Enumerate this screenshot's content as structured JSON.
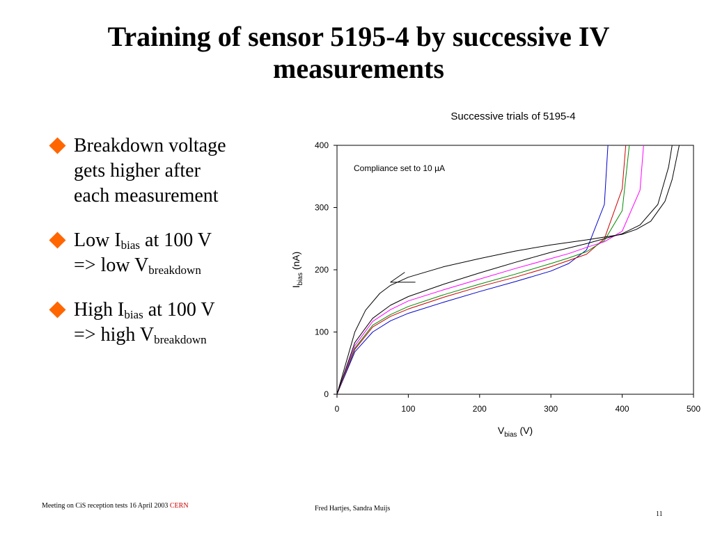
{
  "slide": {
    "title_line1": "Training of sensor 5195-4 by successive IV",
    "title_line2": "measurements"
  },
  "bullets": [
    {
      "parts": [
        "Breakdown voltage",
        "gets higher after",
        "each measurement"
      ]
    },
    {
      "line1": "Low I",
      "line1_sub": "bias",
      "line1_rest": " at  100 V",
      "line2": "=>  low V",
      "line2_sub": "breakdown"
    },
    {
      "line1": "High I",
      "line1_sub": "bias",
      "line1_rest": " at  100 V",
      "line2": "=>  high V",
      "line2_sub": "breakdown"
    }
  ],
  "bullet_color": "#ff6600",
  "footer": {
    "left": "Meeting on CiS reception tests 16 April 2003",
    "left_link": "CERN",
    "center": "Fred Hartjes, Sandra Muijs",
    "page": "11",
    "link_color": "#cc0000"
  },
  "chart_data": {
    "type": "line",
    "title": "Successive trials of 5195-4",
    "xlabel_main": "V",
    "xlabel_sub": "bias",
    "xlabel_unit": " (V)",
    "ylabel_main": "I",
    "ylabel_sub": "bias",
    "ylabel_unit": " (nA)",
    "xlim": [
      0,
      500
    ],
    "ylim": [
      0,
      400
    ],
    "xticks": [
      "0",
      "100",
      "200",
      "300",
      "400",
      "500"
    ],
    "yticks": [
      "0",
      "100",
      "200",
      "300",
      "400"
    ],
    "grid": false,
    "legend": "none",
    "annotation": "Compliance set to 10 µA",
    "series": [
      {
        "color": "#0000cc",
        "points": [
          [
            0,
            0
          ],
          [
            25,
            68
          ],
          [
            50,
            100
          ],
          [
            75,
            118
          ],
          [
            100,
            130
          ],
          [
            150,
            148
          ],
          [
            200,
            165
          ],
          [
            250,
            181
          ],
          [
            300,
            198
          ],
          [
            325,
            210
          ],
          [
            350,
            232
          ],
          [
            375,
            305
          ],
          [
            380,
            400
          ]
        ]
      },
      {
        "color": "#cc0000",
        "points": [
          [
            0,
            0
          ],
          [
            25,
            72
          ],
          [
            50,
            108
          ],
          [
            75,
            125
          ],
          [
            100,
            137
          ],
          [
            150,
            156
          ],
          [
            200,
            173
          ],
          [
            250,
            188
          ],
          [
            300,
            205
          ],
          [
            325,
            215
          ],
          [
            350,
            225
          ],
          [
            375,
            250
          ],
          [
            400,
            330
          ],
          [
            405,
            400
          ]
        ]
      },
      {
        "color": "#008800",
        "points": [
          [
            0,
            0
          ],
          [
            25,
            74
          ],
          [
            50,
            111
          ],
          [
            75,
            128
          ],
          [
            100,
            141
          ],
          [
            150,
            160
          ],
          [
            200,
            177
          ],
          [
            250,
            193
          ],
          [
            300,
            210
          ],
          [
            325,
            219
          ],
          [
            350,
            229
          ],
          [
            375,
            247
          ],
          [
            400,
            295
          ],
          [
            410,
            400
          ]
        ]
      },
      {
        "color": "#ff00ff",
        "points": [
          [
            0,
            0
          ],
          [
            25,
            78
          ],
          [
            50,
            117
          ],
          [
            75,
            136
          ],
          [
            100,
            150
          ],
          [
            150,
            168
          ],
          [
            200,
            185
          ],
          [
            250,
            202
          ],
          [
            300,
            218
          ],
          [
            325,
            226
          ],
          [
            350,
            236
          ],
          [
            375,
            245
          ],
          [
            400,
            262
          ],
          [
            425,
            328
          ],
          [
            430,
            400
          ]
        ]
      },
      {
        "color": "#000000",
        "points": [
          [
            0,
            0
          ],
          [
            25,
            83
          ],
          [
            50,
            122
          ],
          [
            75,
            143
          ],
          [
            100,
            157
          ],
          [
            150,
            177
          ],
          [
            200,
            195
          ],
          [
            250,
            212
          ],
          [
            300,
            228
          ],
          [
            350,
            242
          ],
          [
            400,
            258
          ],
          [
            425,
            272
          ],
          [
            450,
            305
          ],
          [
            465,
            365
          ],
          [
            470,
            400
          ]
        ]
      },
      {
        "color": "#000000",
        "points": [
          [
            0,
            0
          ],
          [
            25,
            100
          ],
          [
            40,
            135
          ],
          [
            60,
            162
          ],
          [
            75,
            175
          ],
          [
            100,
            188
          ],
          [
            150,
            205
          ],
          [
            200,
            218
          ],
          [
            250,
            230
          ],
          [
            300,
            240
          ],
          [
            350,
            248
          ],
          [
            400,
            257
          ],
          [
            420,
            265
          ],
          [
            440,
            278
          ],
          [
            460,
            310
          ],
          [
            470,
            345
          ],
          [
            480,
            400
          ]
        ]
      },
      {
        "color": "#000000",
        "points": [
          [
            95,
            196
          ],
          [
            75,
            180
          ],
          [
            110,
            180
          ]
        ]
      }
    ]
  }
}
